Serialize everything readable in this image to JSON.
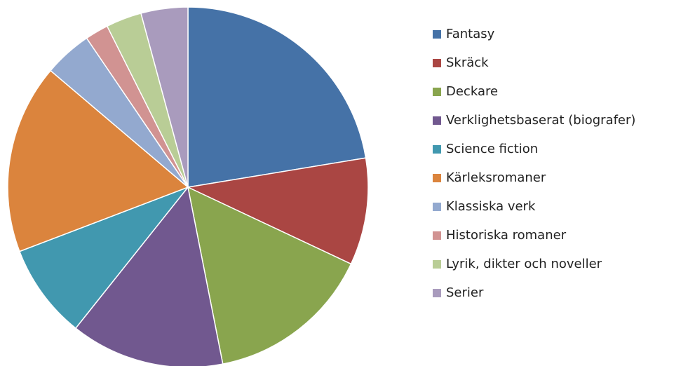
{
  "chart_data": {
    "type": "pie",
    "categories": [
      "Fantasy",
      "Skräck",
      "Deckare",
      "Verklighetsbaserat (biografer)",
      "Science fiction",
      "Kärleksromaner",
      "Klassiska verk",
      "Historiska romaner",
      "Lyrik, dikter och noveller",
      "Serier"
    ],
    "values": [
      22.4,
      9.6,
      14.9,
      13.8,
      8.5,
      17.0,
      4.3,
      2.1,
      3.2,
      4.2
    ],
    "colors": [
      "#4572a7",
      "#aa4643",
      "#89a54e",
      "#71588f",
      "#4198af",
      "#db843d",
      "#93a9cf",
      "#d19392",
      "#b9cd96",
      "#a99bbd"
    ],
    "legend": "right"
  }
}
